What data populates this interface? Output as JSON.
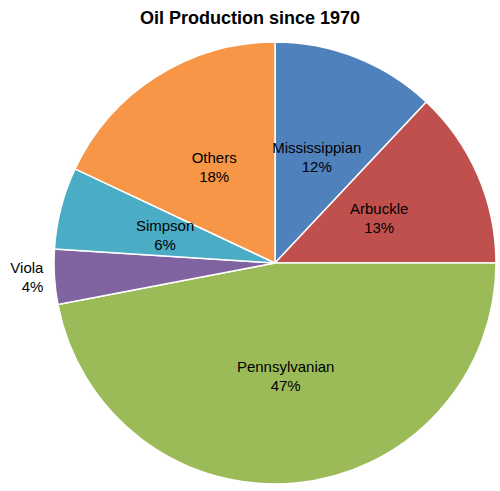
{
  "chart_data": {
    "type": "pie",
    "title": "Oil Production since 1970",
    "categories": [
      "Mississippian",
      "Arbuckle",
      "Pennsylvanian",
      "Viola",
      "Simpson",
      "Others"
    ],
    "values": [
      12,
      13,
      47,
      4,
      6,
      18
    ],
    "value_labels": [
      "12%",
      "13%",
      "47%",
      "4%",
      "6%",
      "18%"
    ],
    "colors": [
      "#4f81bd",
      "#c0504d",
      "#9bbb59",
      "#8064a2",
      "#4bacc6",
      "#f79646"
    ],
    "data_labels": true
  }
}
